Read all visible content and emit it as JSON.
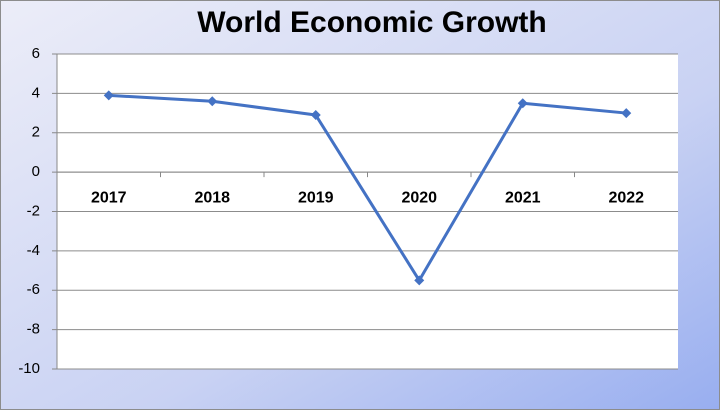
{
  "chart_data": {
    "type": "line",
    "title": "World Economic Growth",
    "categories": [
      "2017",
      "2018",
      "2019",
      "2020",
      "2021",
      "2022"
    ],
    "series": [
      {
        "name": "World Economic Growth",
        "color": "#4472c4",
        "values": [
          3.9,
          3.6,
          2.9,
          -5.5,
          3.5,
          3.0
        ]
      }
    ],
    "ylim": [
      -10,
      6
    ],
    "yticks": [
      -10,
      -8,
      -6,
      -4,
      -2,
      0,
      2,
      4,
      6
    ],
    "grid": true
  }
}
